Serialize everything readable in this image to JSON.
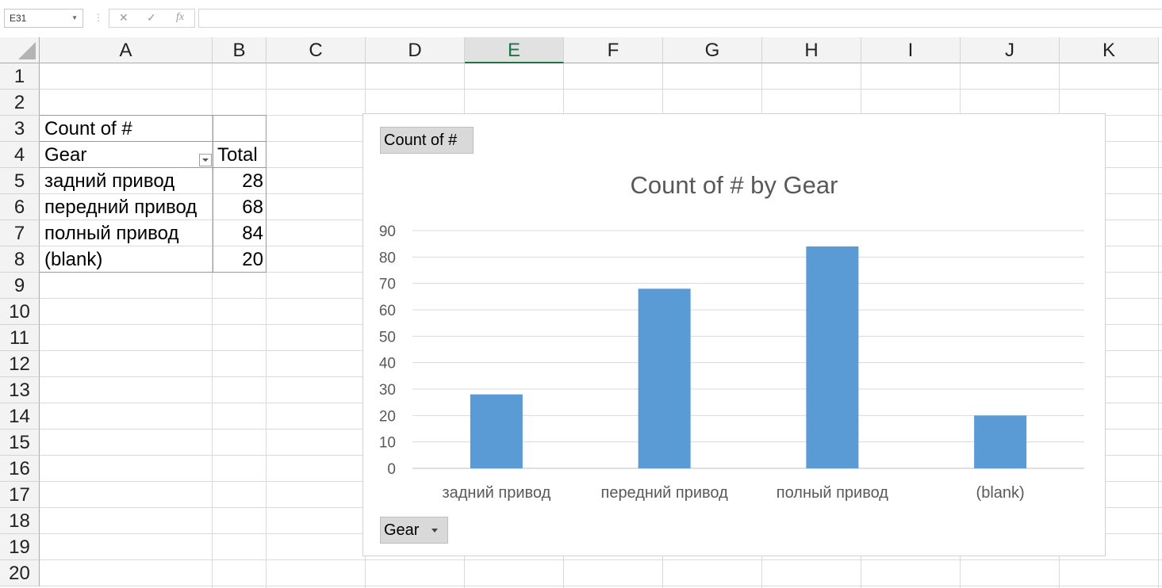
{
  "formula_bar": {
    "name_box": "E31",
    "cancel_icon": "✕",
    "enter_icon": "✓",
    "fx_label": "fx",
    "formula": ""
  },
  "columns": [
    "A",
    "B",
    "C",
    "D",
    "E",
    "F",
    "G",
    "H",
    "I",
    "J",
    "K"
  ],
  "selected_column": "E",
  "rows": [
    "1",
    "2",
    "3",
    "4",
    "5",
    "6",
    "7",
    "8",
    "9",
    "10",
    "11",
    "12",
    "13",
    "14",
    "15",
    "16",
    "17",
    "18",
    "19",
    "20"
  ],
  "pivot": {
    "header": "Count of #",
    "row_label": "Gear",
    "total_label": "Total",
    "items": [
      {
        "label": "задний привод",
        "value": "28"
      },
      {
        "label": "передний привод",
        "value": "68"
      },
      {
        "label": "полный привод",
        "value": "84"
      },
      {
        "label": "(blank)",
        "value": "20"
      }
    ]
  },
  "chart": {
    "value_button": "Count of #",
    "axis_button": "Gear",
    "title": "Count of # by Gear",
    "bar_color": "#5b9bd5"
  },
  "chart_data": {
    "type": "bar",
    "title": "Count of # by Gear",
    "categories": [
      "задний привод",
      "передний привод",
      "полный привод",
      "(blank)"
    ],
    "values": [
      28,
      68,
      84,
      20
    ],
    "yticks": [
      "0",
      "10",
      "20",
      "30",
      "40",
      "50",
      "60",
      "70",
      "80",
      "90"
    ],
    "ylim": [
      0,
      90
    ],
    "grid": true,
    "legend": "none"
  }
}
